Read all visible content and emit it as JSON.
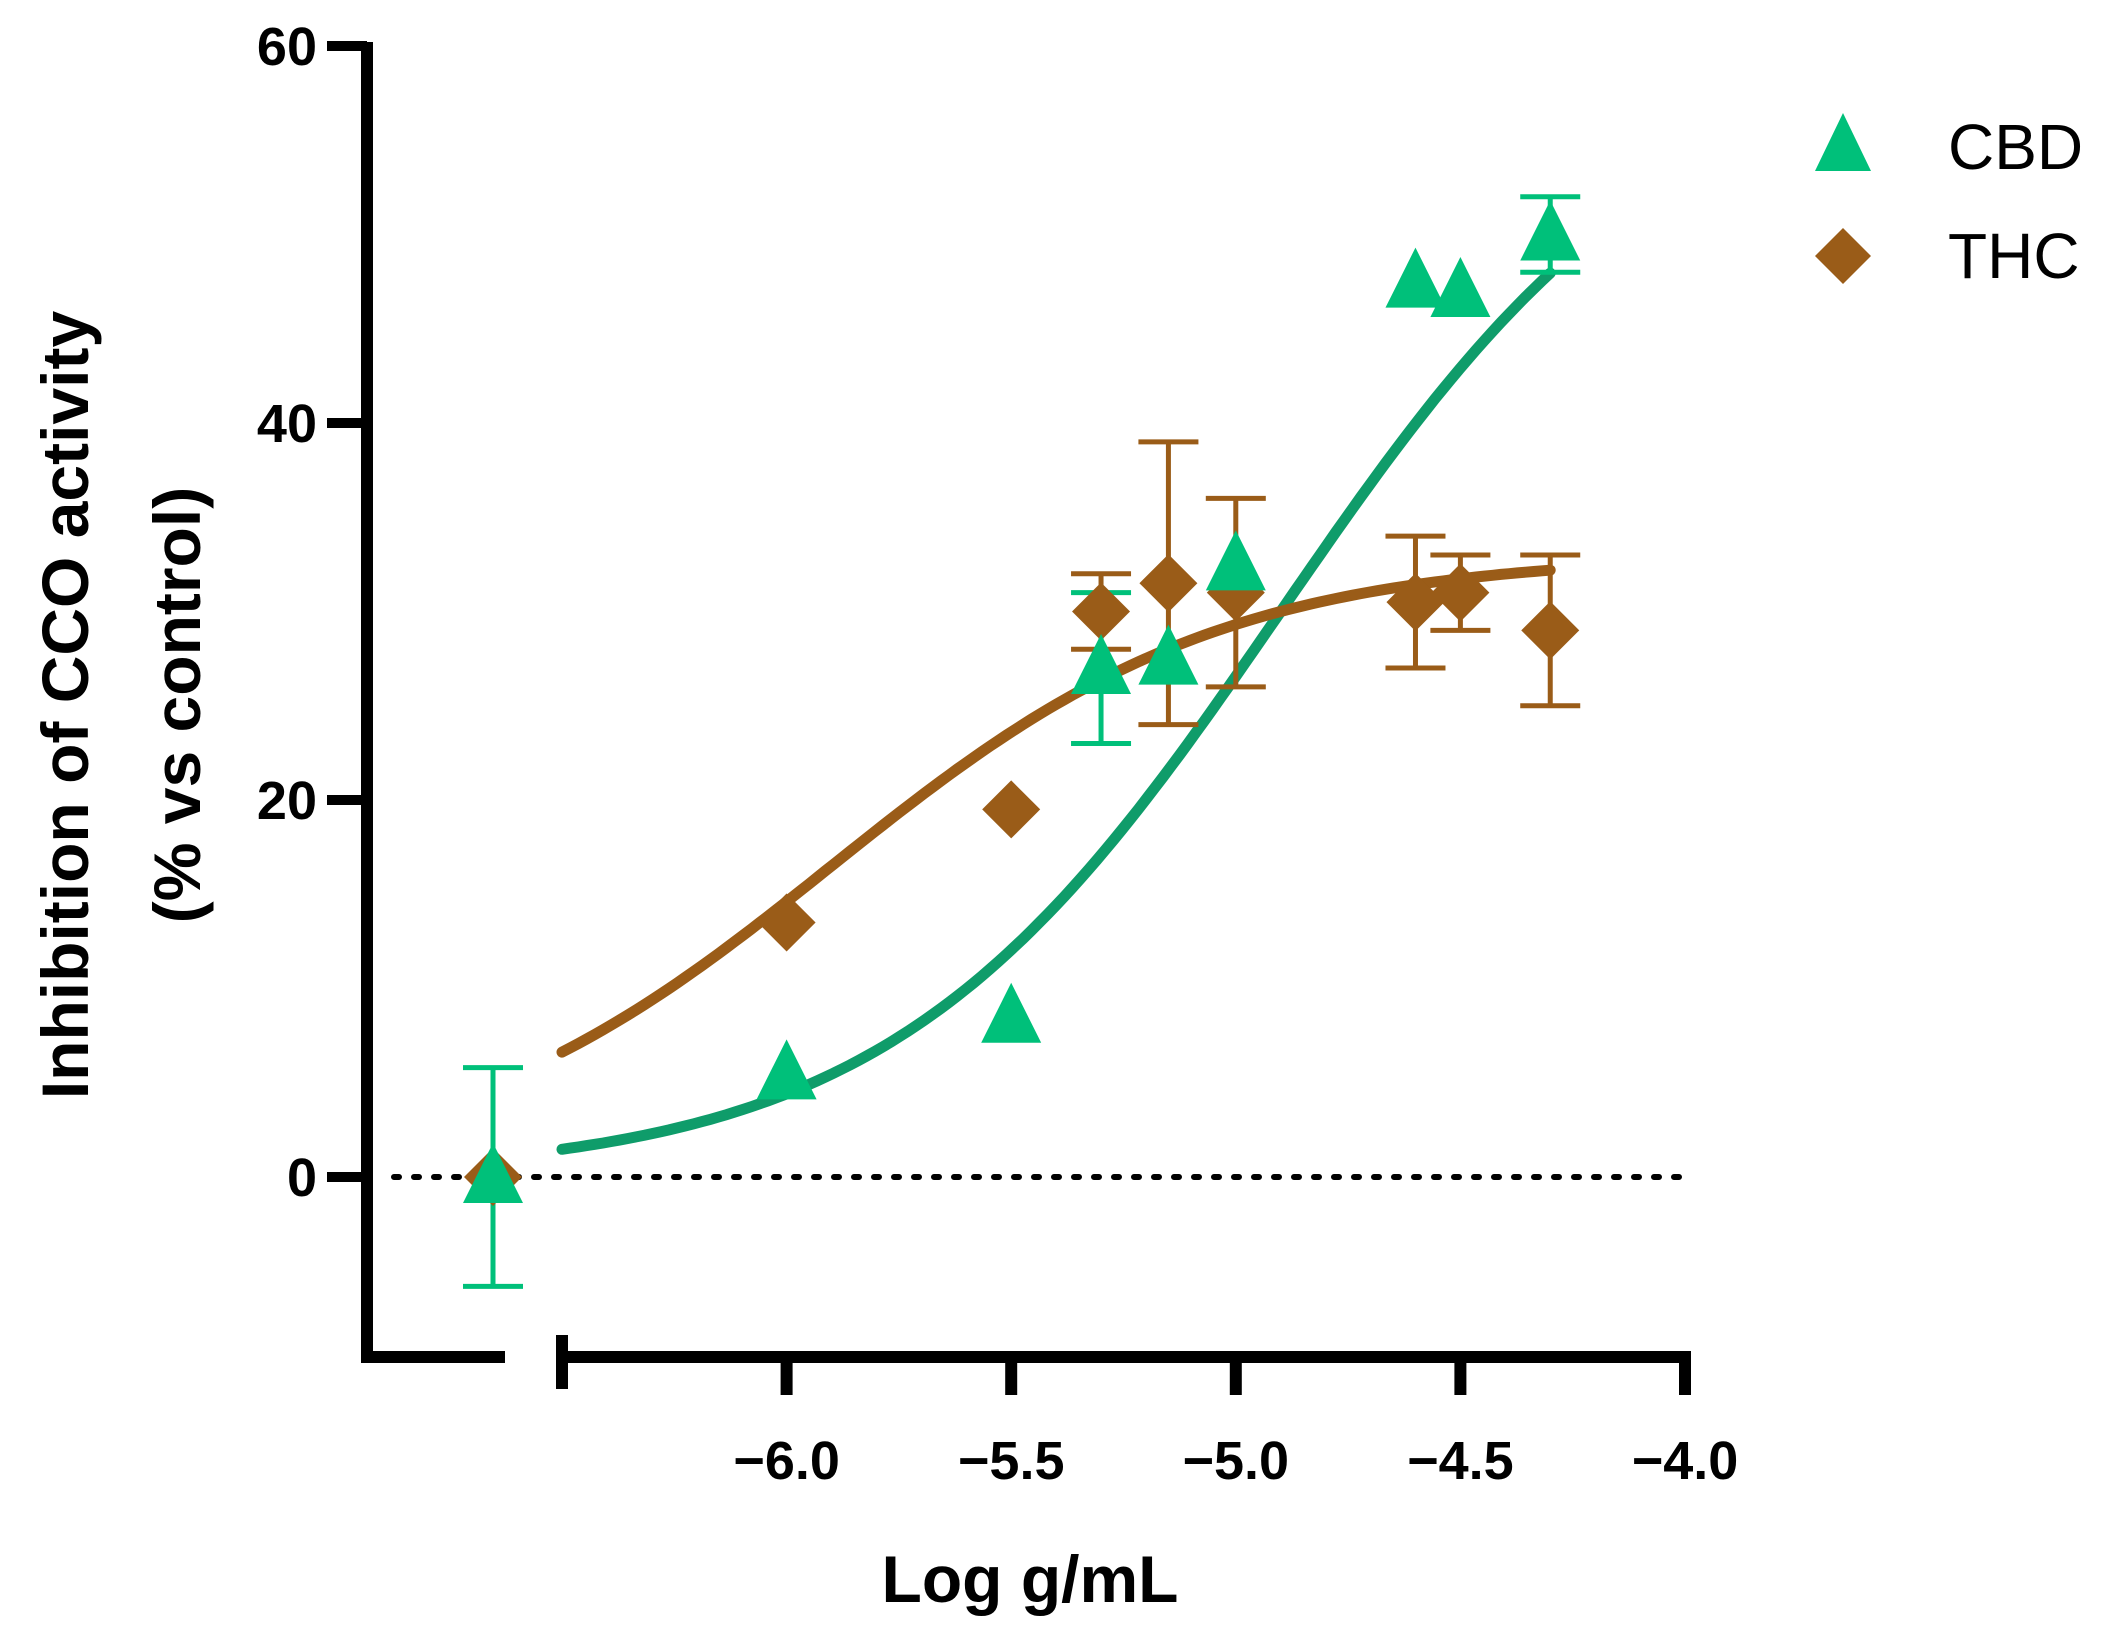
{
  "chart_data": {
    "type": "scatter",
    "title": "",
    "xlabel": "Log g/mL",
    "ylabel_line1": "Inhibition of CCO activity",
    "ylabel_line2": "(% vs control)",
    "xlim": [
      -6.5,
      -4.0
    ],
    "ylim": [
      -10,
      60
    ],
    "xticks": [
      -6.0,
      -5.5,
      -5.0,
      -4.5,
      -4.0
    ],
    "xtick_labels": [
      "−6.0",
      "−5.5",
      "−5.0",
      "−4.5",
      "−4.0"
    ],
    "yticks": [
      0,
      20,
      40,
      60
    ],
    "ytick_labels": [
      "0",
      "20",
      "40",
      "60"
    ],
    "baseline": 0,
    "legend_position": "top-right",
    "control": {
      "CBD": {
        "y": 0,
        "err": 5.8
      },
      "THC": {
        "y": 0,
        "err": 0
      }
    },
    "series": [
      {
        "name": "CBD",
        "color": "#00c07a",
        "fit_color": "#0f9c6a",
        "marker": "triangle",
        "x": [
          -6.0,
          -5.5,
          -5.3,
          -5.15,
          -5.0,
          -4.6,
          -4.5,
          -4.3
        ],
        "y": [
          5.5,
          8.5,
          27.0,
          27.5,
          32.5,
          47.5,
          47.0,
          50.0
        ],
        "err": [
          0,
          0,
          4.0,
          0,
          0,
          0,
          0,
          2.0
        ],
        "fit": {
          "bottom": 0,
          "top": 60,
          "logEC50": -4.9,
          "hill": 1.0,
          "xrange": [
            -6.5,
            -4.3
          ]
        }
      },
      {
        "name": "THC",
        "color": "#9a5c18",
        "fit_color": "#9a5c18",
        "marker": "diamond",
        "x": [
          -6.0,
          -5.5,
          -5.3,
          -5.15,
          -5.0,
          -4.6,
          -4.5,
          -4.3
        ],
        "y": [
          13.5,
          19.5,
          30.0,
          31.5,
          31.0,
          30.5,
          31.0,
          29.0
        ],
        "err": [
          0,
          0,
          2.0,
          7.5,
          5.0,
          3.5,
          2.0,
          4.0
        ],
        "fit": {
          "bottom": 0,
          "top": 33,
          "logEC50": -5.9,
          "hill": 1.0,
          "xrange": [
            -6.5,
            -4.3
          ]
        }
      }
    ]
  }
}
